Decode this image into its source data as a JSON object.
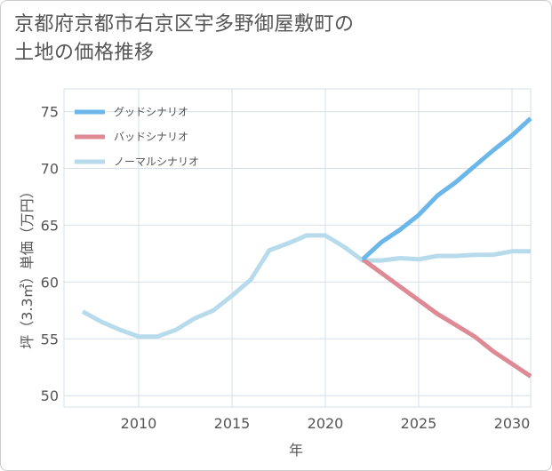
{
  "chart_data": {
    "type": "line",
    "title": "京都府京都市右京区宇多野御屋敷町の土地の価格推移",
    "title_lines": [
      "京都府京都市右京区宇多野御屋敷町の",
      "土地の価格推移"
    ],
    "xlabel": "年",
    "ylabel": "坪（3.3㎡）単価（万円）",
    "xlim": [
      2006,
      2031
    ],
    "ylim": [
      49,
      77
    ],
    "xticks": [
      2010,
      2015,
      2020,
      2025,
      2030
    ],
    "yticks": [
      50,
      55,
      60,
      65,
      70,
      75
    ],
    "grid": true,
    "legend_position": "top-left",
    "series": [
      {
        "name": "グッドシナリオ",
        "color": "#6cb7ea",
        "x": [
          2022,
          2023,
          2024,
          2025,
          2026,
          2027,
          2028,
          2029,
          2030,
          2031
        ],
        "values": [
          62.0,
          63.5,
          64.6,
          65.9,
          67.6,
          68.8,
          70.2,
          71.6,
          72.9,
          74.4
        ]
      },
      {
        "name": "バッドシナリオ",
        "color": "#de8a95",
        "x": [
          2022,
          2023,
          2024,
          2025,
          2026,
          2027,
          2028,
          2029,
          2030,
          2031
        ],
        "values": [
          62.0,
          60.8,
          59.6,
          58.4,
          57.2,
          56.2,
          55.2,
          53.9,
          52.8,
          51.7
        ]
      },
      {
        "name": "ノーマルシナリオ",
        "color": "#b8dbec",
        "x": [
          2007,
          2008,
          2009,
          2010,
          2011,
          2012,
          2013,
          2014,
          2015,
          2016,
          2017,
          2018,
          2019,
          2020,
          2021,
          2022,
          2023,
          2024,
          2025,
          2026,
          2027,
          2028,
          2029,
          2030,
          2031
        ],
        "values": [
          57.4,
          56.5,
          55.8,
          55.2,
          55.2,
          55.8,
          56.8,
          57.5,
          58.8,
          60.2,
          62.8,
          63.4,
          64.1,
          64.1,
          63.1,
          61.9,
          61.9,
          62.1,
          62.0,
          62.3,
          62.3,
          62.4,
          62.4,
          62.7,
          62.7
        ]
      }
    ]
  }
}
